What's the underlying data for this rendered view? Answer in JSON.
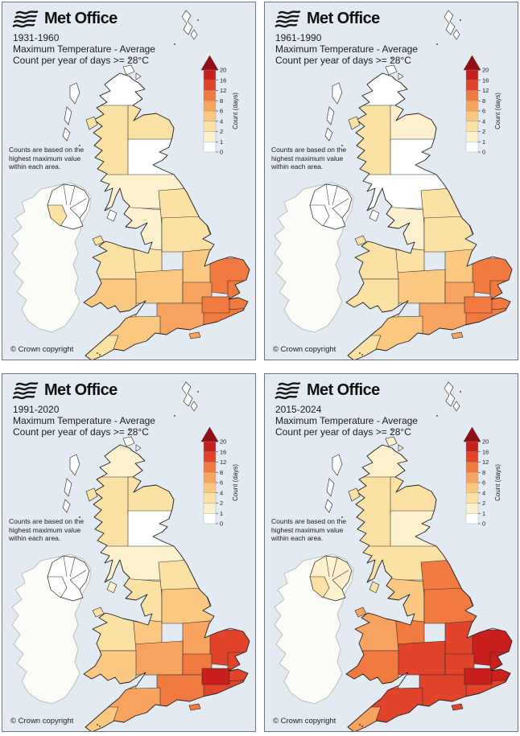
{
  "figure": {
    "brand": "Met Office",
    "subtitle1": "Maximum Temperature - Average",
    "subtitle2": "Count per year of days >= 28°C",
    "note_line1": "Counts are based on the",
    "note_line2": "highest maximum value",
    "note_line3": "within each area.",
    "copyright": "© Crown copyright"
  },
  "legend": {
    "label": "Count (days)",
    "ticks_bottom_to_top": [
      0,
      1,
      2,
      4,
      6,
      8,
      12,
      16,
      20
    ],
    "segment_colors_bottom_to_top": [
      "#ffffff",
      "#fdf0cc",
      "#fce1a4",
      "#fbc882",
      "#f9a361",
      "#f07a40",
      "#e1442b",
      "#c91f1d"
    ],
    "arrow_color": "#8f1117"
  },
  "colors": {
    "sea": "#e3eaf2",
    "panel_border": "#70757d",
    "land_outline": "#1f1f1f",
    "region_border": "#2d2d2d",
    "ireland_fill": "#fbfbf8",
    "ireland_border": "#bcc0ba",
    "text": "#1c1c1c"
  },
  "panels": [
    {
      "period": "1931-1960",
      "map": {
        "region_fills": {
          "shetland": "#ffffff",
          "orkney": "#ffffff",
          "hebrides": "#ffffff",
          "skye": "#fce1a4",
          "scot-north": "#ffffff",
          "scot-west": "#fce1a4",
          "scot-east": "#fce1a4",
          "scot-central": "#ffffff",
          "scot-south": "#fdf0cc",
          "n-ireland": "#ffffff",
          "fermanagh": "#fce1a4",
          "isle-of-man": "#ffffff",
          "cumbria": "#fdf0cc",
          "ne-england": "#fce1a4",
          "yorkshire": "#fce1a4",
          "lancashire": "#fce1a4",
          "east-midlands": "#fbc882",
          "west-midlands": "#fbc882",
          "wales-north": "#fce1a4",
          "wales-south": "#fbc882",
          "east-anglia": "#f07a40",
          "cambs": "#f9a361",
          "essex": "#f07a40",
          "london": "#f07a40",
          "kent-se": "#f07a40",
          "south-central": "#f9a361",
          "southwest": "#fbc882",
          "cornwall": "#fce1a4",
          "isle-of-wight": "#f9a361"
        }
      }
    },
    {
      "period": "1961-1990",
      "map": {
        "region_fills": {
          "shetland": "#ffffff",
          "orkney": "#ffffff",
          "hebrides": "#ffffff",
          "skye": "#fce1a4",
          "scot-north": "#ffffff",
          "scot-west": "#fce1a4",
          "scot-east": "#fdf0cc",
          "scot-central": "#ffffff",
          "scot-south": "#ffffff",
          "n-ireland": "#ffffff",
          "fermanagh": "#ffffff",
          "isle-of-man": "#ffffff",
          "cumbria": "#fdf0cc",
          "ne-england": "#fce1a4",
          "yorkshire": "#fce1a4",
          "lancashire": "#fce1a4",
          "east-midlands": "#fbc882",
          "west-midlands": "#fbc882",
          "wales-north": "#fce1a4",
          "wales-south": "#fce1a4",
          "east-anglia": "#f07a40",
          "cambs": "#f9a361",
          "essex": "#f07a40",
          "london": "#f07a40",
          "kent-se": "#f07a40",
          "south-central": "#f9a361",
          "southwest": "#fbc882",
          "cornwall": "#fce1a4",
          "isle-of-wight": "#f9a361"
        }
      }
    },
    {
      "period": "1991-2020",
      "map": {
        "region_fills": {
          "shetland": "#ffffff",
          "orkney": "#ffffff",
          "hebrides": "#ffffff",
          "skye": "#fce1a4",
          "scot-north": "#fdf0cc",
          "scot-west": "#fce1a4",
          "scot-east": "#fce1a4",
          "scot-central": "#ffffff",
          "scot-south": "#fdf0cc",
          "n-ireland": "#ffffff",
          "fermanagh": "#ffffff",
          "isle-of-man": "#fdf0cc",
          "cumbria": "#fce1a4",
          "ne-england": "#fce1a4",
          "yorkshire": "#fbc882",
          "lancashire": "#fbc882",
          "east-midlands": "#f9a361",
          "west-midlands": "#f9a361",
          "wales-north": "#fce1a4",
          "wales-south": "#fbc882",
          "east-anglia": "#e1442b",
          "cambs": "#f07a40",
          "essex": "#e1442b",
          "london": "#c91f1d",
          "kent-se": "#e1442b",
          "south-central": "#f07a40",
          "southwest": "#f9a361",
          "cornwall": "#fbc882",
          "isle-of-wight": "#f07a40"
        }
      }
    },
    {
      "period": "2015-2024",
      "map": {
        "region_fills": {
          "shetland": "#ffffff",
          "orkney": "#fdf0cc",
          "hebrides": "#ffffff",
          "skye": "#fce1a4",
          "scot-north": "#fdf0cc",
          "scot-west": "#fce1a4",
          "scot-east": "#fce1a4",
          "scot-central": "#fdf0cc",
          "scot-south": "#fce1a4",
          "n-ireland": "#fdf0cc",
          "fermanagh": "#fce1a4",
          "isle-of-man": "#fce1a4",
          "cumbria": "#fbc882",
          "ne-england": "#f07a40",
          "yorkshire": "#f07a40",
          "lancashire": "#f07a40",
          "east-midlands": "#e1442b",
          "west-midlands": "#e1442b",
          "wales-north": "#f9a361",
          "wales-south": "#f07a40",
          "east-anglia": "#c91f1d",
          "cambs": "#e1442b",
          "essex": "#c91f1d",
          "london": "#c91f1d",
          "kent-se": "#e1442b",
          "south-central": "#e1442b",
          "southwest": "#e1442b",
          "cornwall": "#f9a361",
          "isle-of-wight": "#e1442b"
        }
      }
    }
  ]
}
